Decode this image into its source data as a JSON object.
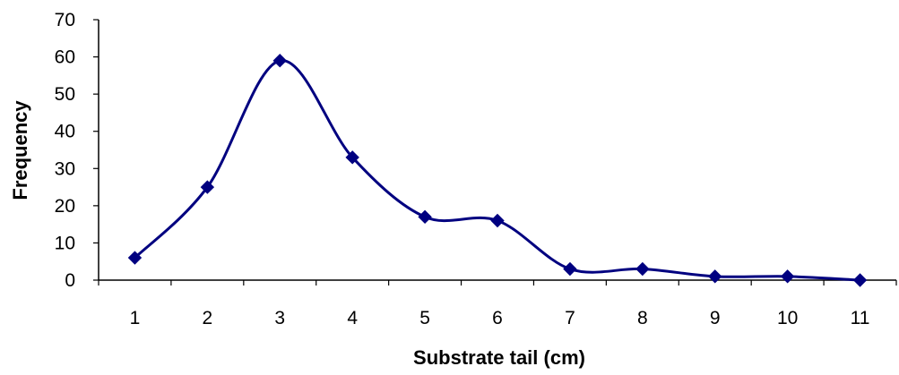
{
  "chart_data": {
    "type": "line",
    "smooth": true,
    "x": [
      1,
      2,
      3,
      4,
      5,
      6,
      7,
      8,
      9,
      10,
      11
    ],
    "series": [
      {
        "values": [
          6,
          25,
          59,
          33,
          17,
          16,
          3,
          3,
          1,
          1,
          0
        ]
      }
    ],
    "xlabel": "Substrate tail (cm)",
    "ylabel": "Frequency",
    "ylim": [
      0,
      70
    ],
    "yticks": [
      0,
      10,
      20,
      30,
      40,
      50,
      60,
      70
    ],
    "xtick_labels": [
      "1",
      "2",
      "3",
      "4",
      "5",
      "6",
      "7",
      "8",
      "9",
      "10",
      "11"
    ],
    "ytick_labels": [
      "0",
      "10",
      "20",
      "30",
      "40",
      "50",
      "60",
      "70"
    ],
    "grid": false,
    "legend": "none",
    "marker": "diamond",
    "line_color": "#000080",
    "marker_color": "#000080"
  }
}
